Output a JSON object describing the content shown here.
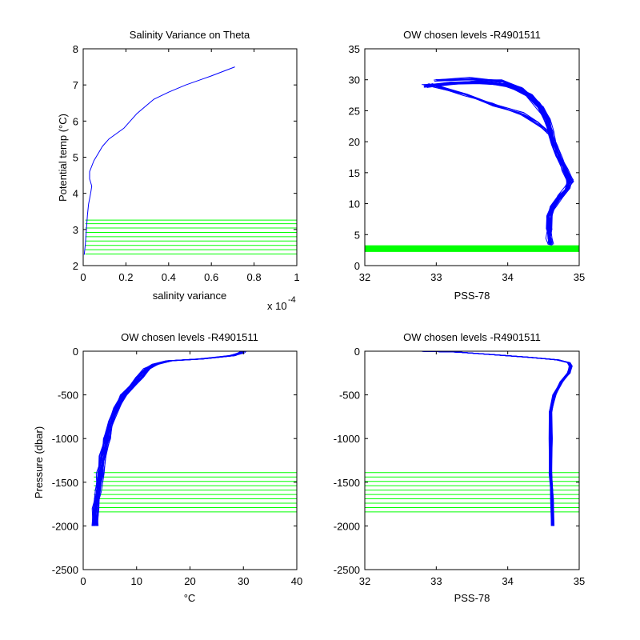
{
  "colors": {
    "profile": "#0000ff",
    "levels": "#00ff00",
    "axes": "#000000",
    "background": "#ffffff"
  },
  "chart_data": [
    {
      "id": "salinity-variance",
      "type": "line",
      "title": "Salinity Variance on Theta",
      "xlabel": "salinity variance",
      "ylabel": "Potential temp (°C)",
      "x_multiplier": "x 10",
      "x_multiplier_exponent": "-4",
      "xlim": [
        0,
        1
      ],
      "ylim": [
        2,
        8
      ],
      "xticks": [
        0,
        0.2,
        0.4,
        0.6,
        0.8,
        1
      ],
      "xtick_labels": [
        "0",
        "0.2",
        "0.4",
        "0.6",
        "0.8",
        "1"
      ],
      "yticks": [
        2,
        3,
        4,
        5,
        6,
        7,
        8
      ],
      "ytick_labels": [
        "2",
        "3",
        "4",
        "5",
        "6",
        "7",
        "8"
      ],
      "y_reversed": false,
      "grid": false,
      "series": [
        {
          "values": [
            [
              0.71,
              7.5
            ],
            [
              0.6,
              7.25
            ],
            [
              0.48,
              7.0
            ],
            [
              0.4,
              6.8
            ],
            [
              0.33,
              6.6
            ],
            [
              0.25,
              6.2
            ],
            [
              0.19,
              5.8
            ],
            [
              0.12,
              5.5
            ],
            [
              0.09,
              5.3
            ],
            [
              0.07,
              5.1
            ],
            [
              0.05,
              4.9
            ],
            [
              0.03,
              4.6
            ],
            [
              0.03,
              4.4
            ],
            [
              0.04,
              4.2
            ],
            [
              0.035,
              4.0
            ],
            [
              0.025,
              3.7
            ],
            [
              0.02,
              3.4
            ],
            [
              0.015,
              3.0
            ],
            [
              0.01,
              2.6
            ],
            [
              0.005,
              2.3
            ]
          ]
        }
      ],
      "levels": {
        "orientation": "horizontal",
        "values": [
          2.32,
          2.44,
          2.56,
          2.68,
          2.8,
          2.92,
          3.04,
          3.16,
          3.26
        ],
        "from": 0.01,
        "to": 1
      }
    },
    {
      "id": "theta-salinity",
      "type": "line",
      "title": "OW chosen levels -R4901511",
      "xlabel": "PSS-78",
      "ylabel": "",
      "xlim": [
        32,
        35
      ],
      "ylim": [
        0,
        35
      ],
      "xticks": [
        32,
        33,
        34,
        35
      ],
      "xtick_labels": [
        "32",
        "33",
        "34",
        "35"
      ],
      "yticks": [
        0,
        5,
        10,
        15,
        20,
        25,
        30,
        35
      ],
      "ytick_labels": [
        "0",
        "5",
        "10",
        "15",
        "20",
        "25",
        "30",
        "35"
      ],
      "y_reversed": false,
      "grid": false,
      "series": [
        {
          "values": [
            [
              32.85,
              29.0
            ],
            [
              33.2,
              29.4
            ],
            [
              33.6,
              29.6
            ],
            [
              34.0,
              29.1
            ],
            [
              34.3,
              27.5
            ],
            [
              34.45,
              25.5
            ],
            [
              34.55,
              23.5
            ],
            [
              34.6,
              21.5
            ],
            [
              34.65,
              19.5
            ],
            [
              34.72,
              17.5
            ],
            [
              34.8,
              15.5
            ],
            [
              34.87,
              13.8
            ],
            [
              34.84,
              12.5
            ],
            [
              34.74,
              11.2
            ],
            [
              34.64,
              9.8
            ],
            [
              34.58,
              8.0
            ],
            [
              34.57,
              6.0
            ],
            [
              34.58,
              4.5
            ],
            [
              34.6,
              3.5
            ]
          ],
          "spread": 0.06,
          "copies": 26
        },
        {
          "values": [
            [
              32.9,
              29.2
            ],
            [
              33.4,
              27.5
            ],
            [
              33.8,
              26.0
            ],
            [
              34.2,
              24.5
            ],
            [
              34.42,
              23.0
            ],
            [
              34.55,
              21.5
            ]
          ],
          "spread": 0.05,
          "copies": 8
        },
        {
          "values": [
            [
              33.0,
              30.0
            ],
            [
              33.5,
              30.2
            ],
            [
              33.9,
              29.8
            ],
            [
              34.2,
              28.5
            ],
            [
              34.4,
              26.5
            ],
            [
              34.5,
              25.0
            ]
          ],
          "spread": 0.05,
          "copies": 8
        }
      ],
      "levels": {
        "orientation": "horizontal",
        "values": [
          2.3,
          2.4,
          2.5,
          2.6,
          2.7,
          2.8,
          2.9,
          3.0,
          3.1,
          3.2
        ],
        "from": 32,
        "to": 35
      }
    },
    {
      "id": "pressure-temperature",
      "type": "line",
      "title": "OW chosen levels -R4901511",
      "xlabel": "°C",
      "ylabel": "Pressure (dbar)",
      "xlim": [
        0,
        40
      ],
      "ylim": [
        -2500,
        0
      ],
      "xticks": [
        0,
        10,
        20,
        30,
        40
      ],
      "xtick_labels": [
        "0",
        "10",
        "20",
        "30",
        "40"
      ],
      "yticks": [
        -2500,
        -2000,
        -1500,
        -1000,
        -500,
        0
      ],
      "ytick_labels": [
        "-2500",
        "-2000",
        "-1500",
        "-1000",
        "-500",
        "0"
      ],
      "y_reversed": false,
      "grid": false,
      "series": [
        {
          "values": [
            [
              30.0,
              0
            ],
            [
              29.5,
              -20
            ],
            [
              28.0,
              -50
            ],
            [
              22.0,
              -90
            ],
            [
              16.0,
              -110
            ],
            [
              13.5,
              -150
            ],
            [
              12.0,
              -200
            ],
            [
              10.5,
              -300
            ],
            [
              9.0,
              -400
            ],
            [
              7.5,
              -500
            ],
            [
              6.3,
              -650
            ],
            [
              5.2,
              -800
            ],
            [
              4.4,
              -1000
            ],
            [
              3.7,
              -1200
            ],
            [
              3.2,
              -1400
            ],
            [
              2.8,
              -1600
            ],
            [
              2.4,
              -1800
            ],
            [
              2.1,
              -2000
            ]
          ],
          "spread": 0.9,
          "copies": 22
        }
      ],
      "levels": {
        "orientation": "horizontal",
        "values": [
          -1390,
          -1440,
          -1490,
          -1540,
          -1590,
          -1640,
          -1690,
          -1740,
          -1790,
          -1840
        ],
        "from": 2,
        "to": 40
      }
    },
    {
      "id": "pressure-salinity",
      "type": "line",
      "title": "OW chosen levels -R4901511",
      "xlabel": "PSS-78",
      "ylabel": "",
      "xlim": [
        32,
        35
      ],
      "ylim": [
        -2500,
        0
      ],
      "xticks": [
        32,
        33,
        34,
        35
      ],
      "xtick_labels": [
        "32",
        "33",
        "34",
        "35"
      ],
      "yticks": [
        -2500,
        -2000,
        -1500,
        -1000,
        -500,
        0
      ],
      "ytick_labels": [
        "-2500",
        "-2000",
        "-1500",
        "-1000",
        "-500",
        "0"
      ],
      "y_reversed": false,
      "grid": false,
      "series": [
        {
          "values": [
            [
              32.8,
              0
            ],
            [
              33.3,
              -10
            ],
            [
              33.8,
              -40
            ],
            [
              34.3,
              -70
            ],
            [
              34.7,
              -100
            ],
            [
              34.85,
              -130
            ],
            [
              34.88,
              -170
            ],
            [
              34.85,
              -250
            ],
            [
              34.75,
              -350
            ],
            [
              34.65,
              -500
            ],
            [
              34.6,
              -700
            ],
            [
              34.6,
              -1000
            ],
            [
              34.6,
              -1400
            ],
            [
              34.62,
              -1700
            ],
            [
              34.63,
              -2000
            ]
          ],
          "spread": 0.03,
          "copies": 22
        }
      ],
      "levels": {
        "orientation": "horizontal",
        "values": [
          -1390,
          -1440,
          -1490,
          -1540,
          -1590,
          -1640,
          -1690,
          -1740,
          -1790,
          -1840
        ],
        "from": 32,
        "to": 35
      }
    }
  ]
}
